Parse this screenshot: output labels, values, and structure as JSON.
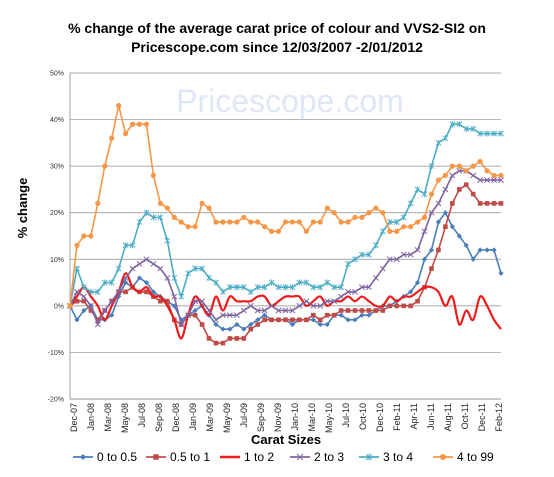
{
  "chart_data": {
    "type": "line",
    "title_line1": "% change of the average carat price of  colour and VVS2-SI2  on",
    "title_line2": "Pricescope.com since 12/03/2007 -2/01/2012",
    "watermark": "Pricescope.com",
    "xlabel": "Carat Sizes",
    "ylabel": "% change",
    "ylim": [
      -20,
      50
    ],
    "yticks": [
      "-20%",
      "-10%",
      "0%",
      "10%",
      "20%",
      "30%",
      "40%",
      "50%"
    ],
    "grid": "horizontal",
    "legend_position": "bottom",
    "x_tick_labels": [
      "Dec-07",
      "Jan-08",
      "Mar-08",
      "May-08",
      "Jul-08",
      "Sep-08",
      "Dec-08",
      "Jan-09",
      "Mar-09",
      "May-09",
      "Jul-09",
      "Sep-09",
      "Nov-09",
      "Jan-10",
      "Mar-10",
      "May-10",
      "Jul-10",
      "Oct-10",
      "Dec-10",
      "Feb-11",
      "Apr-11",
      "Jun-11",
      "Aug-11",
      "Oct-11",
      "Dec-11",
      "Feb-12"
    ],
    "x_count": 63,
    "series": [
      {
        "name": "0 to 0.5",
        "color": "#4a7ebb",
        "marker": "diamond",
        "smooth": false,
        "values": [
          0,
          -3,
          -1,
          0,
          -3,
          -3,
          -2,
          2,
          5,
          4,
          6,
          5,
          3,
          2,
          1,
          0,
          -3,
          -2,
          -1,
          0,
          -2,
          -4,
          -5,
          -5,
          -4,
          -5,
          -4,
          -3,
          -2,
          -3,
          -3,
          -3,
          -4,
          -3,
          -3,
          -3,
          -4,
          -4,
          -2,
          -2,
          -3,
          -3,
          -2,
          -2,
          -1,
          0,
          0,
          1,
          2,
          3,
          5,
          10,
          12,
          18,
          20,
          17,
          15,
          13,
          10,
          12,
          12,
          12,
          7
        ]
      },
      {
        "name": "0.5  to 1",
        "color": "#be4b48",
        "marker": "square",
        "smooth": false,
        "values": [
          0,
          1,
          1,
          -1,
          -3,
          -1,
          1,
          3,
          3,
          4,
          3,
          3,
          2,
          1,
          1,
          -3,
          -4,
          -2,
          -2,
          -4,
          -7,
          -8,
          -8,
          -7,
          -7,
          -7,
          -5,
          -4,
          -3,
          -3,
          -3,
          -3,
          -3,
          -3,
          -3,
          -2,
          -3,
          -2,
          -2,
          -1,
          -1,
          -1,
          -1,
          -1,
          -1,
          -1,
          0,
          0,
          0,
          0,
          1,
          4,
          8,
          12,
          17,
          22,
          25,
          26,
          24,
          22,
          22,
          22,
          22
        ]
      },
      {
        "name": "1 to 2",
        "color": "#ee1c1c",
        "marker": "none",
        "smooth": true,
        "values": [
          0,
          2,
          4,
          2,
          0,
          -3,
          0,
          3,
          7,
          4,
          3,
          4,
          2,
          2,
          0,
          -3,
          -7,
          -2,
          2,
          0,
          -2,
          2,
          -1,
          2,
          1,
          1,
          1,
          2,
          2,
          0,
          1,
          2,
          2,
          2,
          0,
          1,
          2,
          0,
          1,
          1,
          2,
          1,
          2,
          1,
          0,
          0,
          2,
          1,
          2,
          2,
          3,
          4,
          4,
          3,
          0,
          2,
          -4,
          -1,
          -3,
          2,
          0,
          -3,
          -5
        ]
      },
      {
        "name": "2 to 3",
        "color": "#7e64a0",
        "marker": "x",
        "smooth": false,
        "values": [
          0,
          3,
          2,
          0,
          -4,
          -1,
          1,
          3,
          6,
          8,
          9,
          10,
          9,
          8,
          6,
          2,
          -4,
          -2,
          1,
          1,
          -1,
          -3,
          -2,
          -2,
          -2,
          -1,
          0,
          -1,
          -1,
          0,
          -1,
          -1,
          -1,
          0,
          1,
          0,
          0,
          1,
          1,
          2,
          3,
          3,
          4,
          4,
          6,
          8,
          10,
          10,
          11,
          11,
          12,
          16,
          20,
          22,
          25,
          28,
          29,
          29,
          28,
          27,
          27,
          27,
          27
        ]
      },
      {
        "name": "3 to 4",
        "color": "#4bacc6",
        "marker": "star",
        "smooth": false,
        "values": [
          0,
          8,
          4,
          3,
          3,
          5,
          5,
          8,
          13,
          13,
          18,
          20,
          19,
          19,
          14,
          6,
          2,
          7,
          8,
          8,
          6,
          5,
          3,
          4,
          4,
          4,
          3,
          4,
          4,
          5,
          4,
          4,
          4,
          5,
          5,
          4,
          4,
          5,
          4,
          4,
          9,
          10,
          11,
          11,
          13,
          16,
          18,
          18,
          19,
          22,
          25,
          24,
          30,
          35,
          36,
          39,
          39,
          38,
          38,
          37,
          37,
          37,
          37
        ]
      },
      {
        "name": "4 to 99",
        "color": "#f79646",
        "marker": "circle",
        "smooth": false,
        "values": [
          0,
          13,
          15,
          15,
          22,
          30,
          36,
          43,
          37,
          39,
          39,
          39,
          28,
          22,
          21,
          19,
          18,
          17,
          17,
          22,
          21,
          18,
          18,
          18,
          18,
          19,
          18,
          18,
          17,
          16,
          16,
          18,
          18,
          18,
          16,
          18,
          18,
          21,
          20,
          18,
          18,
          19,
          19,
          20,
          21,
          20,
          16,
          16,
          17,
          17,
          18,
          19,
          24,
          27,
          28,
          30,
          30,
          29,
          30,
          31,
          29,
          28,
          28
        ]
      }
    ]
  }
}
